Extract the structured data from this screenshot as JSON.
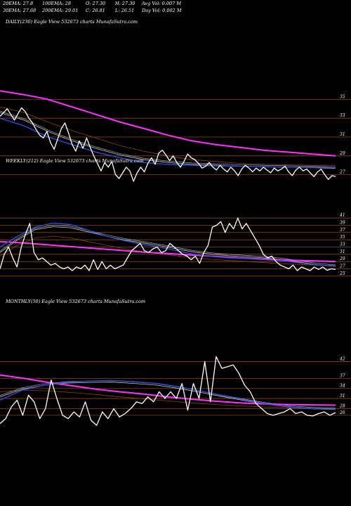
{
  "header": {
    "row1": [
      "20EMA: 27.8",
      "100EMA: 28",
      "O: 27.30",
      "H: 27.30",
      "Avg Vol: 0.007  M"
    ],
    "row2": [
      "30EMA: 27.68",
      "200EMA: 29.01",
      "C: 26.81",
      "L: 26.51",
      "Day Vol: 0.002  M"
    ]
  },
  "colors": {
    "background": "#000000",
    "price": "#ffffff",
    "gridline": "#8b4513",
    "ema_fast": "#2b4fd8",
    "ema_slow": "#ff33ff",
    "ema_mid": "#c8c8c8",
    "ema_long": "#8b4513"
  },
  "chart_data": [
    {
      "type": "line",
      "title": "DAILY(230) Eagle  View  532673 charts MunafaSutra.com",
      "y_ticks": [
        35,
        33,
        31,
        29,
        27
      ],
      "ylim": [
        26,
        36
      ],
      "grid": true,
      "series": [
        {
          "role": "price",
          "values": [
            33.2,
            33.6,
            34.0,
            33.4,
            32.8,
            33.5,
            34.1,
            33.7,
            33.0,
            32.5,
            31.8,
            31.2,
            30.9,
            31.6,
            30.4,
            29.7,
            30.8,
            31.9,
            32.5,
            31.4,
            30.2,
            29.5,
            30.6,
            29.8,
            30.9,
            29.9,
            29.0,
            28.2,
            27.4,
            28.3,
            27.8,
            28.4,
            27.0,
            26.6,
            27.2,
            27.8,
            27.4,
            26.3,
            27.2,
            27.8,
            27.3,
            28.2,
            28.8,
            28.1,
            29.3,
            29.6,
            29.1,
            28.5,
            29.0,
            28.3,
            27.8,
            28.4,
            29.2,
            28.8,
            28.6,
            28.2,
            27.7,
            27.9,
            28.3,
            27.8,
            27.5,
            28.0,
            27.6,
            27.3,
            27.8,
            27.4,
            26.9,
            27.6,
            28.0,
            27.7,
            27.3,
            27.7,
            27.4,
            27.8,
            27.5,
            27.2,
            27.7,
            27.4,
            27.6,
            27.9,
            27.3,
            26.9,
            27.5,
            27.8,
            27.4,
            27.6,
            27.2,
            26.8,
            27.3,
            27.6,
            27.0,
            26.5,
            26.9,
            26.81
          ]
        },
        {
          "role": "ema_fast",
          "values": [
            33.0,
            32.2,
            31.0,
            30.2,
            29.4,
            28.8,
            28.3,
            28.1,
            28.0,
            27.95,
            27.9,
            27.85,
            27.8,
            27.78,
            27.8
          ]
        },
        {
          "role": "ema_mid",
          "values": [
            33.6,
            32.8,
            31.6,
            30.6,
            29.8,
            29.1,
            28.6,
            28.3,
            28.1,
            28.0,
            27.9,
            27.85,
            27.8,
            27.75,
            27.68
          ]
        },
        {
          "role": "ema_long",
          "values": [
            34.2,
            33.6,
            32.6,
            31.7,
            30.9,
            30.1,
            29.5,
            29.0,
            28.6,
            28.4,
            28.2,
            28.1,
            28.05,
            28.0,
            28.0
          ]
        },
        {
          "role": "ema_slow",
          "values": [
            35.9,
            35.5,
            35.0,
            34.2,
            33.4,
            32.6,
            31.9,
            31.2,
            30.6,
            30.2,
            29.9,
            29.6,
            29.4,
            29.2,
            29.01
          ]
        }
      ]
    },
    {
      "type": "line",
      "title": "WEEKLY(212) Eagle  View  532673 charts MunafaSutra.com",
      "y_ticks": [
        41,
        39,
        37,
        35,
        33,
        31,
        29,
        27,
        25
      ],
      "ylim": [
        24,
        42
      ],
      "grid": true,
      "series": [
        {
          "role": "price",
          "values": [
            27.0,
            31.0,
            33.0,
            30.0,
            27.5,
            33.0,
            36.5,
            39.5,
            31.5,
            29.5,
            30.0,
            29.0,
            28.0,
            28.5,
            27.5,
            27.0,
            27.5,
            26.5,
            27.5,
            27.0,
            28.0,
            26.5,
            29.5,
            26.8,
            29.0,
            27.0,
            28.0,
            27.0,
            27.5,
            28.0,
            30.0,
            32.0,
            33.0,
            34.0,
            32.0,
            31.5,
            32.5,
            33.0,
            31.5,
            32.0,
            34.0,
            33.0,
            32.0,
            31.0,
            30.5,
            29.5,
            30.5,
            28.5,
            31.5,
            33.5,
            38.5,
            39.0,
            40.0,
            37.0,
            39.5,
            38.0,
            41.0,
            38.0,
            39.5,
            37.5,
            35.5,
            33.5,
            31.0,
            30.0,
            30.5,
            29.0,
            28.0,
            27.5,
            27.0,
            28.0,
            26.5,
            27.5,
            27.0,
            26.5,
            27.5,
            26.8,
            27.5,
            26.6,
            27.0,
            26.81
          ]
        },
        {
          "role": "ema_fast",
          "values": [
            33.0,
            36.0,
            38.5,
            39.6,
            39.2,
            37.6,
            36.0,
            34.8,
            33.8,
            33.0,
            32.0,
            31.0,
            30.4,
            30.0,
            29.8,
            29.5,
            29.2,
            28.6,
            28.0,
            27.8
          ]
        },
        {
          "role": "ema_mid",
          "values": [
            31.5,
            35.0,
            37.8,
            38.6,
            38.3,
            37.2,
            36.0,
            35.0,
            34.2,
            33.4,
            32.5,
            31.6,
            31.0,
            30.6,
            30.3,
            30.0,
            29.5,
            28.8,
            28.1,
            27.68
          ]
        },
        {
          "role": "ema_long",
          "values": [
            30.5,
            33.5,
            35.5,
            36.0,
            35.5,
            34.5,
            33.5,
            32.6,
            31.8,
            31.2,
            30.6,
            30.0,
            29.6,
            29.3,
            29.0,
            28.7,
            28.4,
            28.2,
            28.0,
            28.0
          ]
        },
        {
          "role": "ema_slow",
          "values": [
            34.5,
            34.1,
            33.6,
            33.1,
            32.6,
            32.1,
            31.6,
            31.2,
            30.8,
            30.4,
            30.0,
            29.7,
            29.4,
            29.2,
            29.01
          ]
        }
      ]
    },
    {
      "type": "line",
      "title": "MONTHLY(50) Eagle  View  532673 charts MunafaSutra.com",
      "y_ticks": [
        42,
        37,
        34,
        31,
        28,
        26
      ],
      "ylim": [
        22,
        44
      ],
      "grid": true,
      "series": [
        {
          "role": "price",
          "values": [
            23.5,
            25.0,
            28.5,
            30.5,
            26.0,
            32.0,
            30.0,
            25.0,
            28.0,
            36.5,
            31.0,
            26.0,
            25.0,
            27.0,
            25.5,
            30.0,
            24.5,
            23.0,
            27.0,
            25.0,
            28.0,
            25.5,
            26.5,
            28.0,
            30.0,
            29.5,
            31.5,
            30.0,
            33.0,
            31.0,
            33.0,
            31.0,
            35.5,
            27.5,
            35.5,
            31.0,
            42.0,
            30.0,
            43.5,
            40.0,
            40.5,
            41.0,
            38.5,
            35.0,
            33.0,
            29.5,
            28.0,
            26.5,
            26.0,
            26.5,
            27.0,
            28.0,
            26.5,
            27.0,
            26.0,
            25.8,
            26.5,
            27.0,
            26.0,
            26.81
          ]
        },
        {
          "role": "ema_fast",
          "values": [
            30.5,
            33.5,
            35.0,
            35.8,
            36.2,
            36.4,
            36.0,
            35.5,
            34.5,
            33.2,
            31.8,
            30.5,
            29.3,
            28.5,
            28.0,
            27.8
          ]
        },
        {
          "role": "ema_mid",
          "values": [
            31.5,
            33.8,
            35.0,
            35.6,
            35.8,
            35.9,
            35.5,
            35.0,
            34.0,
            32.8,
            31.5,
            30.3,
            29.2,
            28.4,
            27.9,
            27.68
          ]
        },
        {
          "role": "ema_long",
          "values": [
            33.0,
            33.5,
            33.3,
            32.8,
            32.2,
            31.5,
            30.9,
            30.3,
            29.7,
            29.2,
            28.8,
            28.5,
            28.3,
            28.1,
            28.0
          ]
        },
        {
          "role": "ema_slow",
          "values": [
            38.0,
            37.0,
            35.8,
            34.8,
            33.8,
            33.0,
            32.3,
            31.5,
            30.8,
            30.2,
            29.7,
            29.4,
            29.2,
            29.1,
            29.01
          ]
        }
      ]
    }
  ]
}
